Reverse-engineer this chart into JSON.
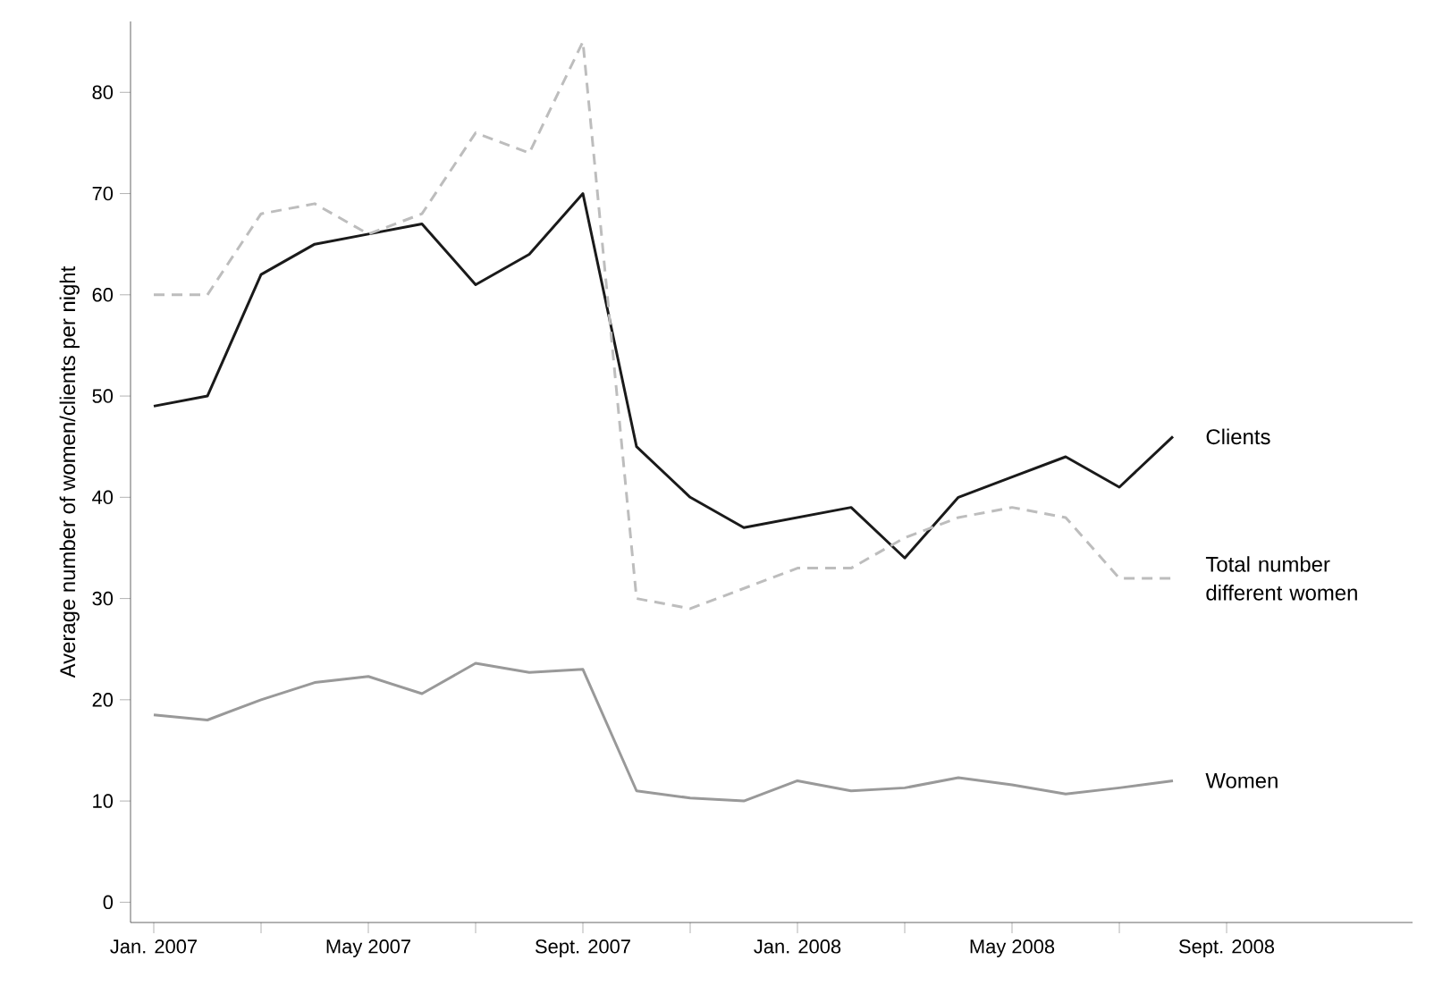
{
  "chart_data": {
    "type": "line",
    "ylabel": "Average number of women/clients per night",
    "x": [
      "2007-01",
      "2007-02",
      "2007-03",
      "2007-04",
      "2007-05",
      "2007-06",
      "2007-07",
      "2007-08",
      "2007-09",
      "2007-10",
      "2007-11",
      "2007-12",
      "2008-01",
      "2008-02",
      "2008-03",
      "2008-04",
      "2008-05",
      "2008-06",
      "2008-07",
      "2008-08"
    ],
    "series": [
      {
        "name": "Clients",
        "color": "#1a1a1a",
        "line_style": "solid",
        "values": [
          49,
          50,
          62,
          65,
          66,
          67,
          61,
          64,
          70,
          45,
          40,
          37,
          38,
          39,
          34,
          40,
          42,
          44,
          41,
          46
        ]
      },
      {
        "name": "Total number different women",
        "color": "#bdbdbd",
        "line_style": "dashed",
        "values": [
          60,
          60,
          68,
          69,
          66,
          68,
          76,
          74,
          85,
          30,
          29,
          31,
          33,
          33,
          36,
          38,
          39,
          38,
          32,
          32
        ]
      },
      {
        "name": "Women",
        "color": "#999999",
        "line_style": "solid",
        "values": [
          18.5,
          18,
          20,
          21.7,
          22.3,
          20.6,
          23.6,
          22.7,
          23,
          11,
          10.3,
          10,
          12,
          11,
          11.3,
          12.3,
          11.6,
          10.7,
          11.3,
          12
        ]
      }
    ],
    "xlim": [
      "2006-12-18",
      "2008-12-15"
    ],
    "xticks": [
      {
        "value": "2007-01",
        "label": "Jan. 2007"
      },
      {
        "value": "2007-03",
        "label": null
      },
      {
        "value": "2007-05",
        "label": "May  2007"
      },
      {
        "value": "2007-07",
        "label": null
      },
      {
        "value": "2007-09",
        "label": "Sept. 2007"
      },
      {
        "value": "2007-11",
        "label": null
      },
      {
        "value": "2008-01",
        "label": "Jan. 2008"
      },
      {
        "value": "2008-03",
        "label": null
      },
      {
        "value": "2008-05",
        "label": "May  2008"
      },
      {
        "value": "2008-07",
        "label": null
      },
      {
        "value": "2008-09",
        "label": "Sept. 2008"
      }
    ],
    "ylim": [
      -2,
      87
    ],
    "yticks": [
      0,
      10,
      20,
      30,
      40,
      50,
      60,
      70,
      80
    ],
    "grid": false,
    "legend": false,
    "marker": "none"
  }
}
